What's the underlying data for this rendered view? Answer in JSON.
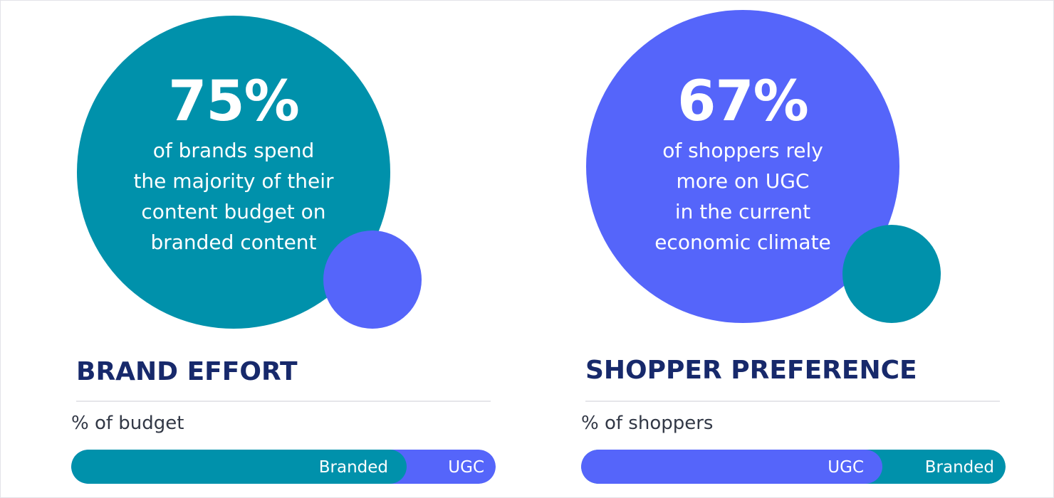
{
  "colors": {
    "teal": "#0091ab",
    "blue": "#5565fa",
    "navy": "#17296b",
    "text": "#323846"
  },
  "chart_data": [
    {
      "type": "bar",
      "stat": {
        "value": "75%",
        "description": "of brands spend\nthe majority of their\ncontent budget on\nbranded content"
      },
      "title": "BRAND EFFORT",
      "subtitle": "% of budget",
      "series": [
        {
          "name": "Branded",
          "value": 75,
          "color": "#0091ab"
        },
        {
          "name": "UGC",
          "value": 25,
          "color": "#5565fa"
        }
      ]
    },
    {
      "type": "bar",
      "stat": {
        "value": "67%",
        "description": "of shoppers rely\nmore on UGC\nin the current\neconomic climate"
      },
      "title": "SHOPPER PREFERENCE",
      "subtitle": "% of shoppers",
      "series": [
        {
          "name": "UGC",
          "value": 67,
          "color": "#5565fa"
        },
        {
          "name": "Branded",
          "value": 33,
          "color": "#0091ab"
        }
      ]
    }
  ]
}
